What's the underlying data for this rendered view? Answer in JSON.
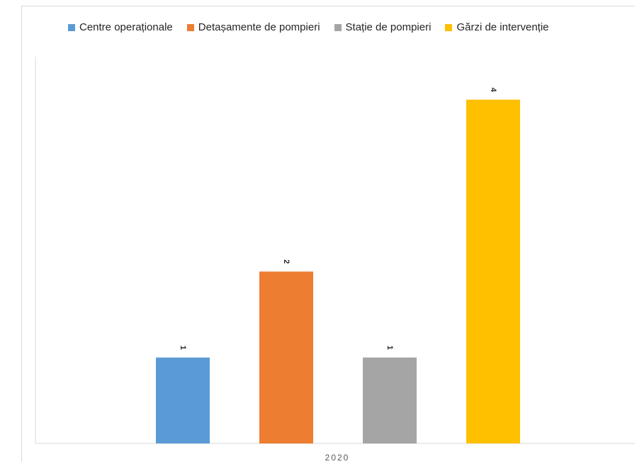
{
  "chart_data": {
    "type": "bar",
    "categories": [
      "2020"
    ],
    "series": [
      {
        "name": "Centre operaționale",
        "values": [
          1
        ],
        "color": "#5B9BD5"
      },
      {
        "name": "Detașamente de pompieri",
        "values": [
          2
        ],
        "color": "#ED7D31"
      },
      {
        "name": "Stație de pompieri",
        "values": [
          1
        ],
        "color": "#A5A5A5"
      },
      {
        "name": "Gărzi de intervenție",
        "values": [
          4
        ],
        "color": "#FFC000"
      }
    ],
    "title": "",
    "xlabel": "",
    "ylabel": "",
    "ylim": [
      0,
      4.5
    ],
    "grid": false,
    "legend_position": "top"
  }
}
